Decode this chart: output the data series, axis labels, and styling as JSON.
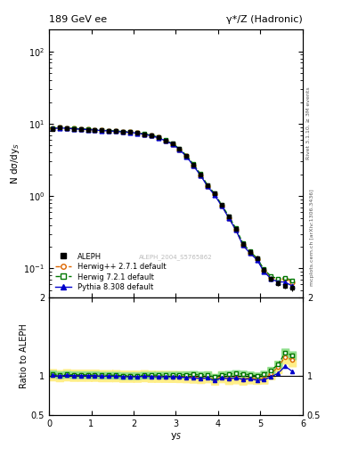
{
  "title_left": "189 GeV ee",
  "title_right": "γ*/Z (Hadronic)",
  "ylabel_main": "N dσ/dy$_S$",
  "ylabel_ratio": "Ratio to ALEPH",
  "xlabel": "y$_S$",
  "right_label_top": "Rivet 3.1.10, ≥ 3M events",
  "right_label_bottom": "mcplots.cern.ch [arXiv:1306.3436]",
  "watermark": "ALEPH_2004_S5765862",
  "xlim": [
    0,
    6
  ],
  "ylim_main": [
    0.04,
    200
  ],
  "ylim_ratio": [
    0.5,
    2.0
  ],
  "aleph_x": [
    0.083,
    0.25,
    0.417,
    0.583,
    0.75,
    0.917,
    1.083,
    1.25,
    1.417,
    1.583,
    1.75,
    1.917,
    2.083,
    2.25,
    2.417,
    2.583,
    2.75,
    2.917,
    3.083,
    3.25,
    3.417,
    3.583,
    3.75,
    3.917,
    4.083,
    4.25,
    4.417,
    4.583,
    4.75,
    4.917,
    5.083,
    5.25,
    5.417,
    5.583,
    5.75
  ],
  "aleph_y": [
    8.5,
    8.8,
    8.6,
    8.5,
    8.4,
    8.3,
    8.2,
    8.1,
    8.0,
    7.9,
    7.8,
    7.7,
    7.5,
    7.2,
    6.9,
    6.5,
    5.9,
    5.3,
    4.5,
    3.6,
    2.7,
    2.0,
    1.4,
    1.1,
    0.75,
    0.52,
    0.35,
    0.22,
    0.17,
    0.14,
    0.095,
    0.073,
    0.063,
    0.058,
    0.054
  ],
  "aleph_yerr": [
    0.15,
    0.12,
    0.1,
    0.1,
    0.1,
    0.1,
    0.1,
    0.1,
    0.1,
    0.1,
    0.1,
    0.1,
    0.1,
    0.1,
    0.1,
    0.1,
    0.1,
    0.1,
    0.1,
    0.09,
    0.08,
    0.07,
    0.06,
    0.05,
    0.04,
    0.03,
    0.02,
    0.015,
    0.012,
    0.01,
    0.008,
    0.006,
    0.005,
    0.005,
    0.005
  ],
  "herwig_x": [
    0.083,
    0.25,
    0.417,
    0.583,
    0.75,
    0.917,
    1.083,
    1.25,
    1.417,
    1.583,
    1.75,
    1.917,
    2.083,
    2.25,
    2.417,
    2.583,
    2.75,
    2.917,
    3.083,
    3.25,
    3.417,
    3.583,
    3.75,
    3.917,
    4.083,
    4.25,
    4.417,
    4.583,
    4.75,
    4.917,
    5.083,
    5.25,
    5.417,
    5.583,
    5.75
  ],
  "herwig_y": [
    8.6,
    8.8,
    8.7,
    8.55,
    8.45,
    8.35,
    8.25,
    8.1,
    8.0,
    7.9,
    7.75,
    7.65,
    7.45,
    7.2,
    6.85,
    6.45,
    5.85,
    5.25,
    4.45,
    3.55,
    2.65,
    1.95,
    1.38,
    1.05,
    0.74,
    0.5,
    0.34,
    0.21,
    0.165,
    0.135,
    0.092,
    0.075,
    0.07,
    0.072,
    0.065
  ],
  "herwig7_x": [
    0.083,
    0.25,
    0.417,
    0.583,
    0.75,
    0.917,
    1.083,
    1.25,
    1.417,
    1.583,
    1.75,
    1.917,
    2.083,
    2.25,
    2.417,
    2.583,
    2.75,
    2.917,
    3.083,
    3.25,
    3.417,
    3.583,
    3.75,
    3.917,
    4.083,
    4.25,
    4.417,
    4.583,
    4.75,
    4.917,
    5.083,
    5.25,
    5.417,
    5.583,
    5.75
  ],
  "herwig7_y": [
    8.7,
    8.9,
    8.75,
    8.6,
    8.5,
    8.4,
    8.3,
    8.15,
    8.05,
    7.95,
    7.8,
    7.7,
    7.5,
    7.25,
    6.95,
    6.55,
    5.95,
    5.35,
    4.55,
    3.65,
    2.75,
    2.02,
    1.42,
    1.08,
    0.76,
    0.53,
    0.36,
    0.225,
    0.172,
    0.14,
    0.097,
    0.078,
    0.072,
    0.075,
    0.068
  ],
  "pythia_x": [
    0.083,
    0.25,
    0.417,
    0.583,
    0.75,
    0.917,
    1.083,
    1.25,
    1.417,
    1.583,
    1.75,
    1.917,
    2.083,
    2.25,
    2.417,
    2.583,
    2.75,
    2.917,
    3.083,
    3.25,
    3.417,
    3.583,
    3.75,
    3.917,
    4.083,
    4.25,
    4.417,
    4.583,
    4.75,
    4.917,
    5.083,
    5.25,
    5.417,
    5.583,
    5.75
  ],
  "pythia_y": [
    8.55,
    8.75,
    8.65,
    8.5,
    8.4,
    8.3,
    8.2,
    8.05,
    7.95,
    7.85,
    7.7,
    7.6,
    7.4,
    7.15,
    6.82,
    6.4,
    5.82,
    5.22,
    4.42,
    3.52,
    2.62,
    1.93,
    1.36,
    1.03,
    0.73,
    0.5,
    0.34,
    0.21,
    0.163,
    0.132,
    0.09,
    0.072,
    0.065,
    0.065,
    0.057
  ],
  "bin_width": 0.167,
  "aleph_color": "#000000",
  "herwig_color": "#dd6600",
  "herwig7_color": "#007700",
  "pythia_color": "#0000cc",
  "herwig_band_color": "#ffee88",
  "herwig7_band_color": "#88dd88",
  "pythia_band_color": "#aaaaff"
}
